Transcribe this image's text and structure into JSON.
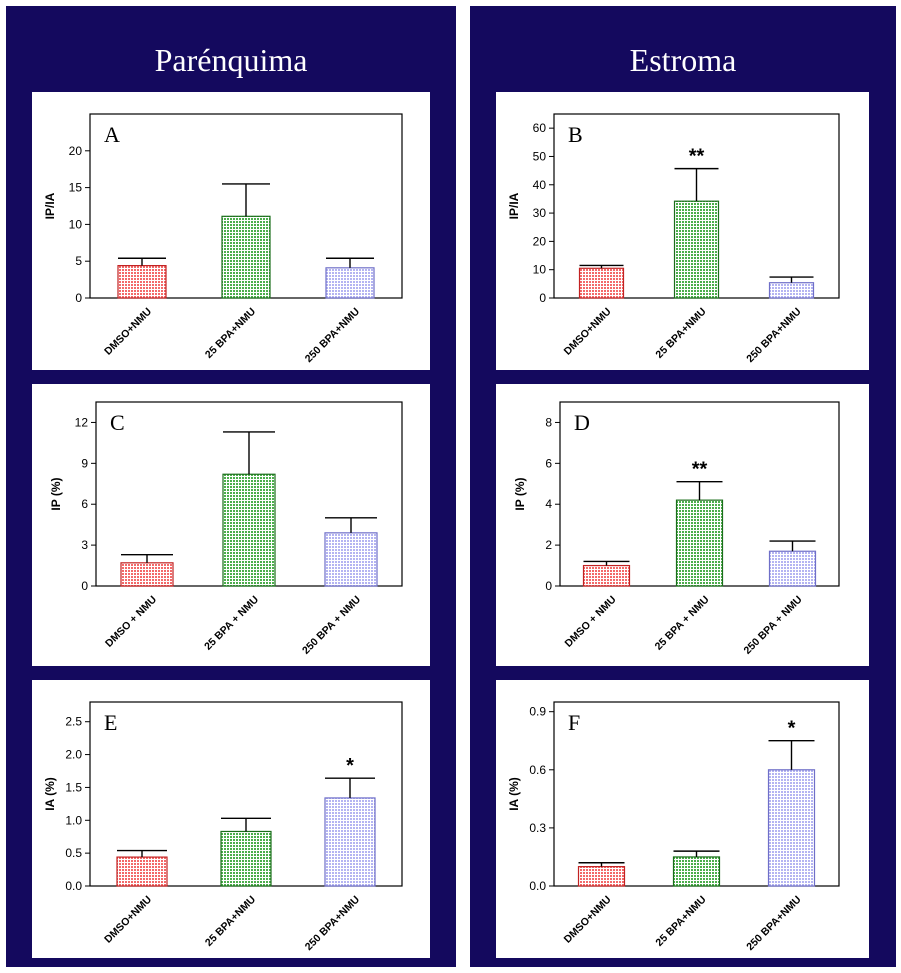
{
  "columns": [
    {
      "title": "Parenquima",
      "display_title": "Parénquima"
    },
    {
      "title": "Estroma",
      "display_title": "Estroma"
    }
  ],
  "colors": {
    "background": "#14095e",
    "panel": "#ffffff",
    "bar_fill": [
      "#f36a6a",
      "#52b852",
      "#b9b9f4"
    ],
    "bar_stroke": [
      "#c22222",
      "#1b6e1b",
      "#6f6fc8"
    ]
  },
  "chart_data": [
    {
      "id": "A",
      "panel_label": "A",
      "column": "Parénquima",
      "type": "bar",
      "ylabel": "IP/IA",
      "categories": [
        "DMSO+NMU",
        "25 BPA+NMU",
        "250 BPA+NMU"
      ],
      "values": [
        4.4,
        11.1,
        4.1
      ],
      "errors": [
        1.0,
        4.4,
        1.3
      ],
      "significance": [
        "",
        "",
        ""
      ],
      "ylim": [
        0,
        25
      ],
      "ticks": [
        0,
        5,
        10,
        15,
        20
      ],
      "tick_labels": [
        "0",
        "5",
        "10",
        "15",
        "20"
      ]
    },
    {
      "id": "B",
      "panel_label": "B",
      "column": "Estroma",
      "type": "bar",
      "ylabel": "IP/IA",
      "categories": [
        "DMSO+NMU",
        "25 BPA+NMU",
        "250 BPA+NMU"
      ],
      "values": [
        10.5,
        34.2,
        5.4
      ],
      "errors": [
        1.0,
        11.5,
        2.0
      ],
      "significance": [
        "",
        "**",
        ""
      ],
      "ylim": [
        0,
        65
      ],
      "ticks": [
        0,
        10,
        20,
        30,
        40,
        50,
        60
      ],
      "tick_labels": [
        "0",
        "10",
        "20",
        "30",
        "40",
        "50",
        "60"
      ]
    },
    {
      "id": "C",
      "panel_label": "C",
      "column": "Parénquima",
      "type": "bar",
      "ylabel": "IP (%)",
      "categories": [
        "DMSO + NMU",
        "25 BPA + NMU",
        "250 BPA + NMU"
      ],
      "values": [
        1.7,
        8.2,
        3.9
      ],
      "errors": [
        0.6,
        3.1,
        1.1
      ],
      "significance": [
        "",
        "",
        ""
      ],
      "ylim": [
        0,
        13.5
      ],
      "ticks": [
        0,
        3,
        6,
        9,
        12
      ],
      "tick_labels": [
        "0",
        "3",
        "6",
        "9",
        "12"
      ]
    },
    {
      "id": "D",
      "panel_label": "D",
      "column": "Estroma",
      "type": "bar",
      "ylabel": "IP (%)",
      "categories": [
        "DMSO + NMU",
        "25 BPA + NMU",
        "250 BPA + NMU"
      ],
      "values": [
        1.0,
        4.2,
        1.7
      ],
      "errors": [
        0.2,
        0.9,
        0.5
      ],
      "significance": [
        "",
        "**",
        ""
      ],
      "ylim": [
        0,
        9
      ],
      "ticks": [
        0,
        2,
        4,
        6,
        8
      ],
      "tick_labels": [
        "0",
        "2",
        "4",
        "6",
        "8"
      ]
    },
    {
      "id": "E",
      "panel_label": "E",
      "column": "Parénquima",
      "type": "bar",
      "ylabel": "IA (%)",
      "categories": [
        "DMSO+NMU",
        "25 BPA+NMU",
        "250 BPA+NMU"
      ],
      "values": [
        0.44,
        0.83,
        1.34
      ],
      "errors": [
        0.1,
        0.2,
        0.3
      ],
      "significance": [
        "",
        "",
        "*"
      ],
      "ylim": [
        0,
        2.8
      ],
      "ticks": [
        0,
        0.5,
        1,
        1.5,
        2,
        2.5
      ],
      "tick_labels": [
        "0.0",
        "0.5",
        "1.0",
        "1.5",
        "2.0",
        "2.5"
      ]
    },
    {
      "id": "F",
      "panel_label": "F",
      "column": "Estroma",
      "type": "bar",
      "ylabel": "IA (%)",
      "categories": [
        "DMSO+NMU",
        "25 BPA+NMU",
        "250 BPA+NMU"
      ],
      "values": [
        0.1,
        0.15,
        0.6
      ],
      "errors": [
        0.02,
        0.03,
        0.15
      ],
      "significance": [
        "",
        "",
        "*"
      ],
      "ylim": [
        0,
        0.95
      ],
      "ticks": [
        0,
        0.3,
        0.6,
        0.9
      ],
      "tick_labels": [
        "0.0",
        "0.3",
        "0.6",
        "0.9"
      ]
    }
  ]
}
